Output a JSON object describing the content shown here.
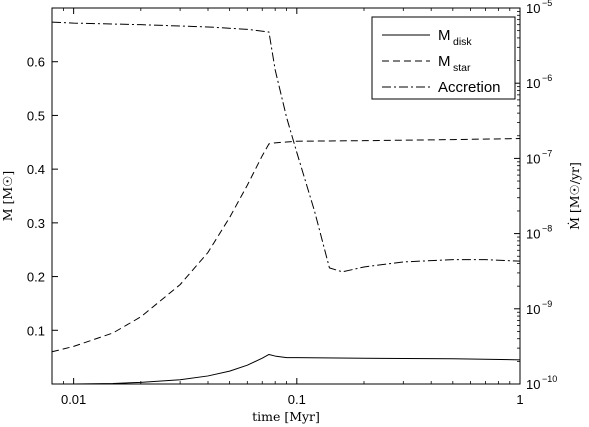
{
  "chart_data": {
    "type": "line",
    "xlabel": "time [Myr]",
    "ylabel_left": "M [M☉]",
    "ylabel_right": "Ṁ [M☉/yr]",
    "xscale": "log",
    "xlim": [
      0.008,
      1
    ],
    "ylim_left": [
      0.0,
      0.7
    ],
    "yscale_right": "log",
    "ylim_right": [
      1e-10,
      1e-05
    ],
    "x_ticks": [
      {
        "v": 0.01,
        "label": "0.01"
      },
      {
        "v": 0.1,
        "label": "0.1"
      },
      {
        "v": 1,
        "label": "1"
      }
    ],
    "y_left_ticks": [
      {
        "v": 0.1,
        "label": "0.1"
      },
      {
        "v": 0.2,
        "label": "0.2"
      },
      {
        "v": 0.3,
        "label": "0.3"
      },
      {
        "v": 0.4,
        "label": "0.4"
      },
      {
        "v": 0.5,
        "label": "0.5"
      },
      {
        "v": 0.6,
        "label": "0.6"
      }
    ],
    "y_right_ticks": [
      {
        "exp": -10,
        "base": "10",
        "sup": "−10"
      },
      {
        "exp": -9,
        "base": "10",
        "sup": "−9"
      },
      {
        "exp": -8,
        "base": "10",
        "sup": "−8"
      },
      {
        "exp": -7,
        "base": "10",
        "sup": "−7"
      },
      {
        "exp": -6,
        "base": "10",
        "sup": "−6"
      },
      {
        "exp": -5,
        "base": "10",
        "sup": "−5"
      }
    ],
    "legend_position": "top-right",
    "series": [
      {
        "name": "M",
        "subscript": "disk",
        "axis": "left",
        "style": "solid",
        "x": [
          0.008,
          0.01,
          0.015,
          0.02,
          0.03,
          0.04,
          0.05,
          0.06,
          0.07,
          0.075,
          0.08,
          0.09,
          0.1,
          0.2,
          0.5,
          1.0
        ],
        "y": [
          0.0,
          0.0,
          0.001,
          0.003,
          0.008,
          0.015,
          0.024,
          0.035,
          0.048,
          0.055,
          0.052,
          0.049,
          0.049,
          0.048,
          0.047,
          0.045
        ]
      },
      {
        "name": "M",
        "subscript": "star",
        "axis": "left",
        "style": "dashed",
        "x": [
          0.008,
          0.01,
          0.015,
          0.02,
          0.03,
          0.04,
          0.05,
          0.06,
          0.07,
          0.075,
          0.08,
          0.1,
          0.2,
          0.5,
          1.0
        ],
        "y": [
          0.06,
          0.07,
          0.095,
          0.125,
          0.185,
          0.245,
          0.31,
          0.37,
          0.425,
          0.447,
          0.449,
          0.452,
          0.453,
          0.455,
          0.457
        ]
      },
      {
        "name": "Accretion",
        "axis": "right",
        "style": "dashdot",
        "x": [
          0.008,
          0.01,
          0.02,
          0.04,
          0.06,
          0.075,
          0.08,
          0.09,
          0.1,
          0.12,
          0.14,
          0.16,
          0.2,
          0.3,
          0.5,
          0.7,
          1.0
        ],
        "y": [
          6.5e-06,
          6.3e-06,
          6e-06,
          5.6e-06,
          5.2e-06,
          4.8e-06,
          1.5e-06,
          3.5e-07,
          1.2e-07,
          2e-08,
          3.5e-09,
          3.1e-09,
          3.6e-09,
          4.2e-09,
          4.5e-09,
          4.5e-09,
          4.3e-09
        ]
      }
    ]
  }
}
